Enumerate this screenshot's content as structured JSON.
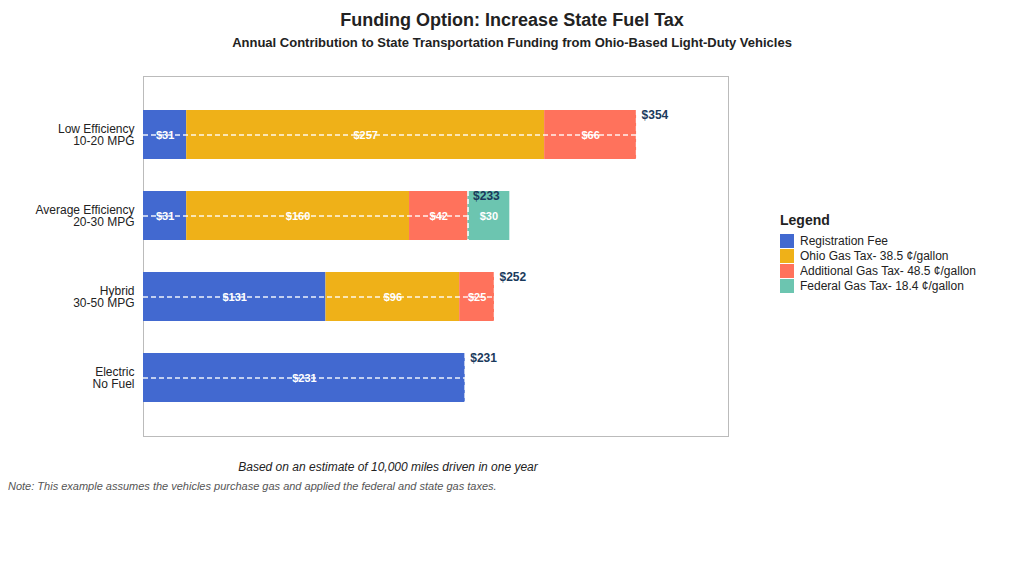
{
  "chart_data": {
    "type": "bar",
    "orientation": "horizontal",
    "stacked": true,
    "title": "Funding Option: Increase State Fuel Tax",
    "subtitle": "Annual Contribution to State Transportation Funding from Ohio-Based  Light-Duty Vehicles",
    "footnote": "Based on an estimate of 10,000 miles driven in one year",
    "note": "Note: This example assumes the vehicles purchase gas and applied the federal and state gas taxes.",
    "categories": [
      "Low Efficiency\n10-20 MPG",
      "Average Efficiency\n20-30 MPG",
      "Hybrid\n30-50 MPG",
      "Electric\nNo Fuel"
    ],
    "series": [
      {
        "name": "Registration Fee",
        "values": [
          31,
          31,
          131,
          231
        ],
        "value_labels": [
          "$31",
          "$31",
          "$131",
          "$231"
        ]
      },
      {
        "name": "Ohio Gas Tax- 38.5 ¢/gallon",
        "values": [
          257,
          160,
          96,
          0
        ],
        "value_labels": [
          "$257",
          "$160",
          "$96",
          null
        ]
      },
      {
        "name": "Additional Gas Tax- 48.5 ¢/gallon",
        "values": [
          66,
          42,
          25,
          0
        ],
        "value_labels": [
          "$66",
          "$42",
          "$25",
          null
        ]
      },
      {
        "name": "Federal Gas Tax- 18.4 ¢/gallon",
        "values": [
          0,
          30,
          0,
          0
        ],
        "value_labels": [
          null,
          "$30",
          null,
          null
        ]
      }
    ],
    "totals": [
      354,
      233,
      252,
      231
    ],
    "total_labels": [
      "$354",
      "$233",
      "$252",
      "$231"
    ],
    "xlim": [
      0,
      420
    ],
    "xticks": [],
    "grid": false,
    "data_labels": true,
    "tick_labels": "y",
    "legend": "right",
    "legend_title": "Legend"
  }
}
